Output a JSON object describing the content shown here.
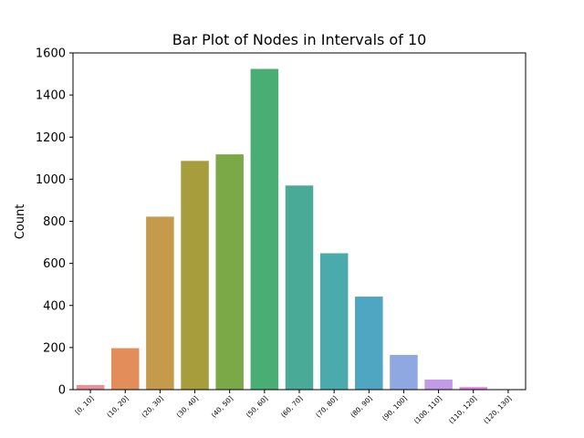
{
  "chart_data": {
    "type": "bar",
    "title": "Bar Plot of Nodes in Intervals of 10",
    "xlabel": "",
    "ylabel": "Count",
    "categories": [
      "[0, 10]",
      "(10, 20]",
      "(20, 30]",
      "(30, 40]",
      "(40, 50]",
      "(50, 60]",
      "(60, 70]",
      "(70, 80]",
      "(80, 90]",
      "(90, 100]",
      "(100, 110]",
      "(110, 120]",
      "(120, 130]"
    ],
    "values": [
      22,
      197,
      822,
      1087,
      1118,
      1524,
      970,
      648,
      442,
      165,
      48,
      12,
      1
    ],
    "colors": [
      "#e8909a",
      "#e38e5a",
      "#c59a4a",
      "#a79d3d",
      "#7ca947",
      "#49ae74",
      "#49ab97",
      "#4baaab",
      "#4ea6c3",
      "#8fa8e2",
      "#c39ae8",
      "#e67ede",
      "#ec8cbd"
    ],
    "ylim": [
      0,
      1600
    ],
    "yticks": [
      0,
      200,
      400,
      600,
      800,
      1000,
      1200,
      1400,
      1600
    ],
    "grid": false,
    "legend": "none"
  }
}
